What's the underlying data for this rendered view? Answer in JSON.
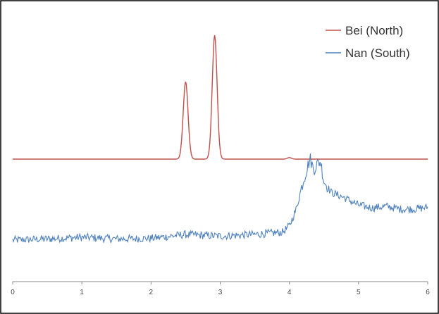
{
  "chart_data": {
    "type": "line",
    "title": "",
    "xlabel": "",
    "ylabel": "",
    "xlim": [
      0,
      6
    ],
    "x_ticks": [
      0,
      1,
      2,
      3,
      4,
      5,
      6
    ],
    "x_tick_labels": [
      "0",
      "1",
      "2",
      "3",
      "4",
      "5",
      "6"
    ],
    "y_axis_visible": false,
    "grid": false,
    "legend_position": "top-right",
    "series": [
      {
        "name": "Bei (North)",
        "color": "#c0504d",
        "baseline": 0,
        "peaks": [
          {
            "x": 2.5,
            "height": 1.0
          },
          {
            "x": 2.92,
            "height": 1.6
          },
          {
            "x": 4.0,
            "height": 0.02
          }
        ]
      },
      {
        "name": "Nan (South)",
        "color": "#4f81bd",
        "points": [
          [
            0.0,
            0.0
          ],
          [
            0.5,
            0.02
          ],
          [
            1.0,
            0.05
          ],
          [
            1.5,
            0.02
          ],
          [
            2.0,
            0.03
          ],
          [
            2.5,
            0.1
          ],
          [
            3.0,
            0.07
          ],
          [
            3.5,
            0.1
          ],
          [
            3.9,
            0.14
          ],
          [
            4.0,
            0.25
          ],
          [
            4.1,
            0.55
          ],
          [
            4.2,
            1.05
          ],
          [
            4.25,
            1.25
          ],
          [
            4.3,
            1.45
          ],
          [
            4.35,
            1.25
          ],
          [
            4.4,
            1.35
          ],
          [
            4.45,
            1.4
          ],
          [
            4.5,
            1.05
          ],
          [
            4.6,
            0.85
          ],
          [
            4.8,
            0.75
          ],
          [
            5.0,
            0.62
          ],
          [
            5.2,
            0.57
          ],
          [
            5.4,
            0.6
          ],
          [
            5.6,
            0.55
          ],
          [
            5.8,
            0.55
          ],
          [
            6.0,
            0.58
          ]
        ]
      }
    ]
  }
}
